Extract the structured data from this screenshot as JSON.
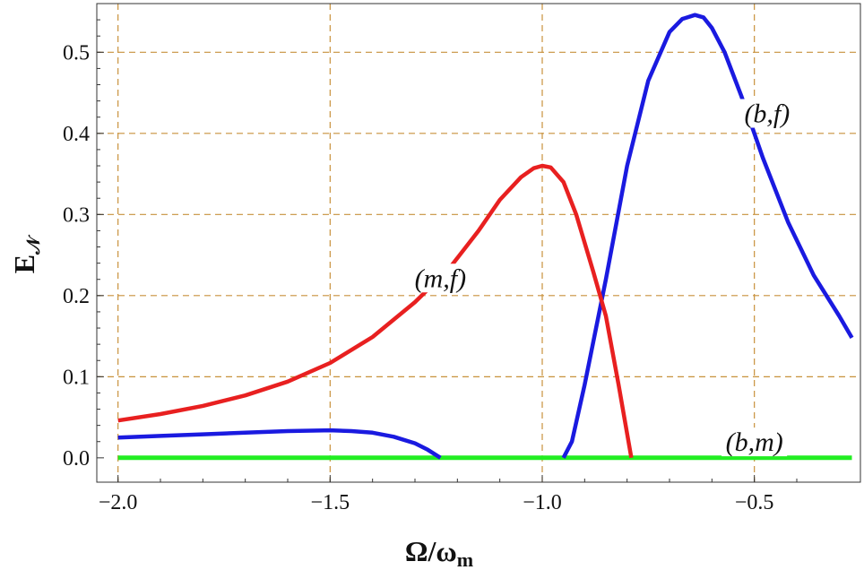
{
  "chart_data": {
    "type": "line",
    "xlabel_main": "Ω/ω",
    "xlabel_sub": "m",
    "ylabel_main": "E",
    "ylabel_sub": "𝒩",
    "xlim": [
      -2.05,
      -0.25
    ],
    "ylim": [
      -0.03,
      0.56
    ],
    "x_ticks": [
      -2.0,
      -1.5,
      -1.0,
      -0.5
    ],
    "x_tick_labels": [
      "−2.0",
      "−1.5",
      "−1.0",
      "−0.5"
    ],
    "y_ticks": [
      0.0,
      0.1,
      0.2,
      0.3,
      0.4,
      0.5
    ],
    "y_tick_labels": [
      "0.0",
      "0.1",
      "0.2",
      "0.3",
      "0.4",
      "0.5"
    ],
    "grid": true,
    "grid_color": "#c8913c",
    "series": [
      {
        "name": "(m,f)",
        "color": "#e82020",
        "x": [
          -2.0,
          -1.9,
          -1.8,
          -1.7,
          -1.6,
          -1.5,
          -1.4,
          -1.3,
          -1.22,
          -1.15,
          -1.1,
          -1.05,
          -1.02,
          -1.0,
          -0.98,
          -0.95,
          -0.92,
          -0.88,
          -0.85,
          -0.82,
          -0.79
        ],
        "y": [
          0.046,
          0.054,
          0.064,
          0.077,
          0.094,
          0.117,
          0.149,
          0.192,
          0.233,
          0.28,
          0.318,
          0.346,
          0.357,
          0.36,
          0.358,
          0.34,
          0.3,
          0.23,
          0.175,
          0.09,
          0.0
        ]
      },
      {
        "name": "(b,f)",
        "color": "#1a1ae0",
        "x": [
          -2.0,
          -1.9,
          -1.8,
          -1.7,
          -1.6,
          -1.5,
          -1.45,
          -1.4,
          -1.35,
          -1.3,
          -1.27,
          -1.24
        ],
        "y": [
          0.025,
          0.027,
          0.029,
          0.031,
          0.033,
          0.034,
          0.033,
          0.031,
          0.026,
          0.018,
          0.01,
          0.0
        ]
      },
      {
        "name": "(b,f)",
        "color": "#1a1ae0",
        "x": [
          -0.95,
          -0.93,
          -0.9,
          -0.85,
          -0.8,
          -0.75,
          -0.7,
          -0.67,
          -0.64,
          -0.62,
          -0.6,
          -0.57,
          -0.53,
          -0.48,
          -0.42,
          -0.36,
          -0.3,
          -0.27
        ],
        "y": [
          0.0,
          0.02,
          0.09,
          0.22,
          0.36,
          0.465,
          0.525,
          0.541,
          0.546,
          0.543,
          0.53,
          0.5,
          0.445,
          0.37,
          0.29,
          0.225,
          0.175,
          0.148
        ]
      },
      {
        "name": "(b,m)",
        "color": "#22ee22",
        "x": [
          -2.0,
          -0.27
        ],
        "y": [
          0.0,
          0.0
        ]
      }
    ],
    "annotations": [
      {
        "text": "(m,f)",
        "x": -1.24,
        "y": 0.215
      },
      {
        "text": "(b,f)",
        "x": -0.47,
        "y": 0.418
      },
      {
        "text": "(b,m)",
        "x": -0.5,
        "y": 0.013
      }
    ]
  }
}
